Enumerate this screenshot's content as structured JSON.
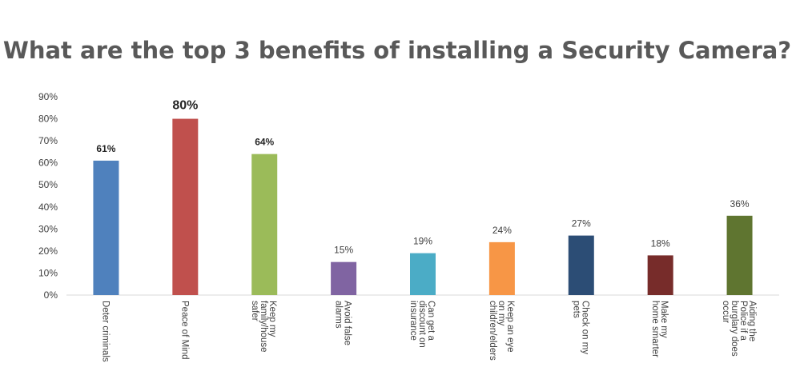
{
  "chart_data": {
    "type": "bar",
    "title": "What are the top 3 benefits of installing a Security Camera?",
    "xlabel": "",
    "ylabel": "",
    "ylim": [
      0,
      90
    ],
    "yticks": [
      "0%",
      "10%",
      "20%",
      "30%",
      "40%",
      "50%",
      "60%",
      "70%",
      "80%",
      "90%"
    ],
    "grid": false,
    "categories": [
      [
        "Deter criminals"
      ],
      [
        "Peace of Mind"
      ],
      [
        "Keep my",
        "family/house",
        "safer"
      ],
      [
        "Avoid false",
        "alarms"
      ],
      [
        "Can get a",
        "discount on",
        "insurance"
      ],
      [
        "Keep an eye",
        "on my",
        "children/elders"
      ],
      [
        "Check on my",
        "pets"
      ],
      [
        "Make my",
        "home smarter"
      ],
      [
        "Aiding the",
        "Police if a",
        "burglary does",
        "occur"
      ]
    ],
    "values": [
      61,
      80,
      64,
      15,
      19,
      24,
      27,
      18,
      36
    ],
    "data_labels": [
      "61%",
      "80%",
      "64%",
      "15%",
      "19%",
      "24%",
      "27%",
      "18%",
      "36%"
    ],
    "highlighted": [
      true,
      true,
      true,
      false,
      false,
      false,
      false,
      false,
      false
    ],
    "colors": [
      "#4f81bd",
      "#c0504d",
      "#9bbb59",
      "#8064a2",
      "#4bacc6",
      "#f79646",
      "#2c4d75",
      "#772c2a",
      "#5f7530"
    ]
  }
}
